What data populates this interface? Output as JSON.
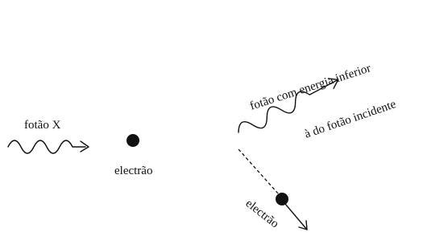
{
  "labels": {
    "incident_photon": "fotão X",
    "electron_initial": "electrão",
    "scattered_photon_line1": "fotão com energia inferior",
    "scattered_photon_line2": "à do fotão incidente",
    "electron_scattered": "electrão"
  }
}
